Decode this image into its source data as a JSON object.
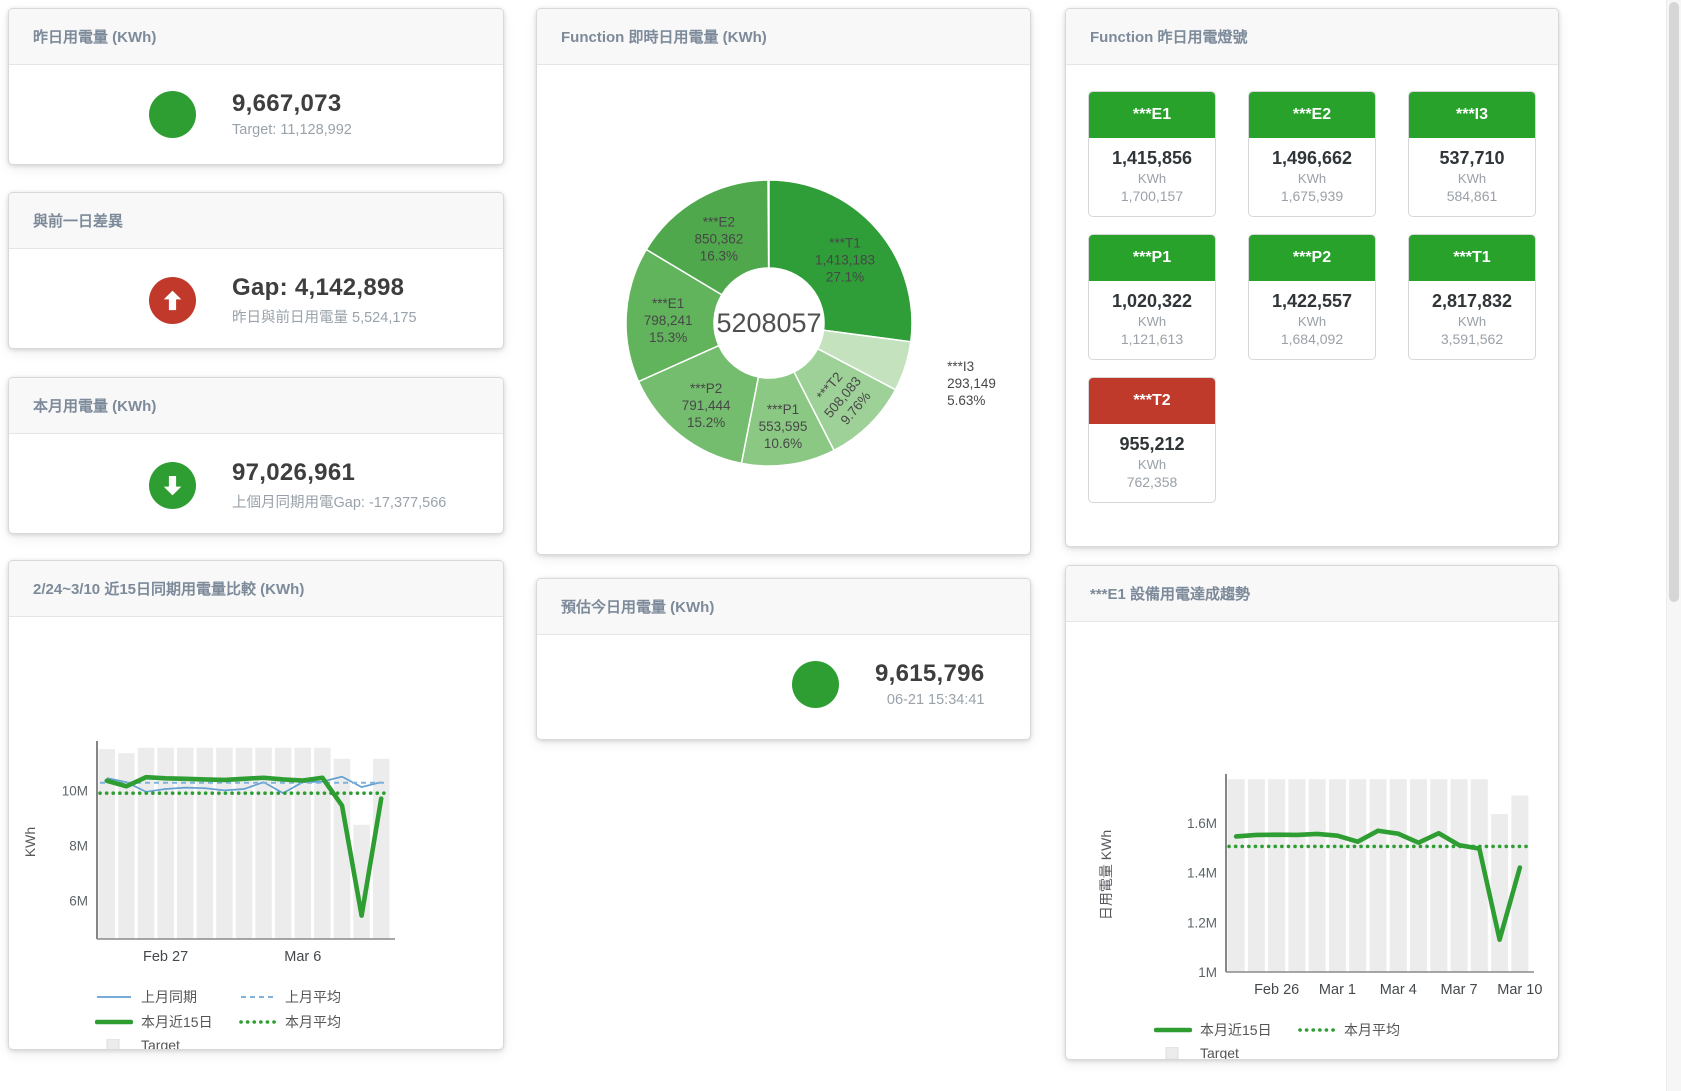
{
  "cards": {
    "yesterday": {
      "title": "昨日用電量 (KWh)",
      "value": "9,667,073",
      "subtitle": "Target: 11,128,992",
      "icon": "circle",
      "icon_color": "#2e9e33"
    },
    "gap": {
      "title": "與前一日差異",
      "value": "Gap: 4,142,898",
      "subtitle": "昨日與前日用電量 5,524,175",
      "icon": "arrow-up",
      "icon_color": "#c0392b"
    },
    "month": {
      "title": "本月用電量 (KWh)",
      "value": "97,026,961",
      "subtitle": "上個月同期用電Gap: -17,377,566",
      "icon": "arrow-down",
      "icon_color": "#2e9e33"
    },
    "estimate": {
      "title": "預估今日用電量 (KWh)",
      "value": "9,615,796",
      "subtitle": "06-21 15:34:41",
      "icon": "circle",
      "icon_color": "#2e9e33"
    }
  },
  "donut_card": {
    "title": "Function 即時日用電量 (KWh)"
  },
  "light_board": {
    "title": "Function 昨日用電燈號",
    "status_colors": {
      "green": "#28a22b",
      "red": "#c03a2b"
    },
    "tiles": [
      {
        "name": "***E1",
        "value": "1,415,856",
        "unit": "KWh",
        "target": "1,700,157",
        "status": "green"
      },
      {
        "name": "***E2",
        "value": "1,496,662",
        "unit": "KWh",
        "target": "1,675,939",
        "status": "green"
      },
      {
        "name": "***I3",
        "value": "537,710",
        "unit": "KWh",
        "target": "584,861",
        "status": "green"
      },
      {
        "name": "***P1",
        "value": "1,020,322",
        "unit": "KWh",
        "target": "1,121,613",
        "status": "green"
      },
      {
        "name": "***P2",
        "value": "1,422,557",
        "unit": "KWh",
        "target": "1,684,092",
        "status": "green"
      },
      {
        "name": "***T1",
        "value": "2,817,832",
        "unit": "KWh",
        "target": "3,591,562",
        "status": "green"
      },
      {
        "name": "***T2",
        "value": "955,212",
        "unit": "KWh",
        "target": "762,358",
        "status": "red"
      }
    ]
  },
  "compare_card": {
    "title": "2/24~3/10 近15日同期用電量比較 (KWh)"
  },
  "trend_card": {
    "title": "***E1 設備用電達成趨勢"
  },
  "chart_data": [
    {
      "id": "realtime_donut",
      "type": "pie",
      "title": "Function 即時日用電量 (KWh)",
      "center_total": "5208057",
      "slices": [
        {
          "name": "***T1",
          "value": 1413183,
          "label_value": "1,413,183",
          "percent": "27.1%",
          "pct": 27.1,
          "color": "#2f9e38"
        },
        {
          "name": "***I3",
          "value": 293149,
          "label_value": "293,149",
          "percent": "5.63%",
          "pct": 5.63,
          "color": "#c3e2bd",
          "label_outside": true
        },
        {
          "name": "***T2",
          "value": 508083,
          "label_value": "508,083",
          "percent": "9.76%",
          "pct": 9.76,
          "color": "#9ed197",
          "rotate": -50
        },
        {
          "name": "***P1",
          "value": 553595,
          "label_value": "553,595",
          "percent": "10.6%",
          "pct": 10.6,
          "color": "#8bc883"
        },
        {
          "name": "***P2",
          "value": 791444,
          "label_value": "791,444",
          "percent": "15.2%",
          "pct": 15.2,
          "color": "#74bd6e"
        },
        {
          "name": "***E1",
          "value": 798241,
          "label_value": "798,241",
          "percent": "15.3%",
          "pct": 15.3,
          "color": "#61b35c"
        },
        {
          "name": "***E2",
          "value": 850362,
          "label_value": "850,362",
          "percent": "16.3%",
          "pct": 16.3,
          "color": "#4fa84b"
        }
      ]
    },
    {
      "id": "compare_15day",
      "type": "line",
      "title": "2/24~3/10 近15日同期用電量比較 (KWh)",
      "categories": [
        "2/24",
        "2/25",
        "2/26",
        "2/27",
        "2/28",
        "3/1",
        "3/2",
        "3/3",
        "3/4",
        "3/5",
        "3/6",
        "3/7",
        "3/8",
        "3/9",
        "3/10"
      ],
      "x_ticks": [
        {
          "index": 3,
          "label": "Feb 27"
        },
        {
          "index": 10,
          "label": "Mar 6"
        }
      ],
      "ylabel": "KWh",
      "unit": "millions of KWh",
      "ylim": [
        4.6,
        11.65
      ],
      "yticks": [
        {
          "value": 6,
          "label": "6M"
        },
        {
          "value": 8,
          "label": "8M"
        },
        {
          "value": 10,
          "label": "10M"
        }
      ],
      "series": [
        {
          "name": "Target",
          "type": "bar",
          "color": "#ececec",
          "values": [
            11.5,
            11.35,
            11.55,
            11.55,
            11.55,
            11.55,
            11.55,
            11.55,
            11.55,
            11.55,
            11.55,
            11.55,
            11.15,
            8.75,
            11.15
          ]
        },
        {
          "name": "上月同期",
          "type": "line",
          "color": "#64a0d2",
          "values": [
            10.45,
            10.3,
            9.95,
            10.05,
            10.1,
            10.08,
            10.0,
            10.05,
            10.3,
            9.9,
            10.3,
            10.32,
            10.5,
            10.12,
            10.3
          ]
        },
        {
          "name": "上月平均",
          "type": "dash",
          "color": "#7fb2dd",
          "value": 10.28
        },
        {
          "name": "本月平均",
          "type": "dots",
          "color": "#2e9e33",
          "value": 9.9
        },
        {
          "name": "本月近15日",
          "type": "thick",
          "color": "#2e9e33",
          "values": [
            10.35,
            10.15,
            10.48,
            10.44,
            10.42,
            10.4,
            10.38,
            10.42,
            10.46,
            10.4,
            10.36,
            10.46,
            9.45,
            5.45,
            9.7
          ]
        }
      ],
      "legend": [
        {
          "label": "上月同期",
          "swatch": "line",
          "color": "#64a0d2"
        },
        {
          "label": "上月平均",
          "swatch": "dash",
          "color": "#7fb2dd"
        },
        {
          "label": "本月近15日",
          "swatch": "thick",
          "color": "#2e9e33"
        },
        {
          "label": "本月平均",
          "swatch": "dots",
          "color": "#2e9e33"
        },
        {
          "label": "Target",
          "swatch": "box",
          "color": "#ececec"
        }
      ]
    },
    {
      "id": "e1_trend",
      "type": "line",
      "title": "***E1 設備用電達成趨勢",
      "categories": [
        "2/24",
        "2/25",
        "2/26",
        "2/27",
        "2/28",
        "3/1",
        "3/2",
        "3/3",
        "3/4",
        "3/5",
        "3/6",
        "3/7",
        "3/8",
        "3/9",
        "3/10"
      ],
      "x_ticks": [
        {
          "index": 2,
          "label": "Feb 26"
        },
        {
          "index": 5,
          "label": "Mar 1"
        },
        {
          "index": 8,
          "label": "Mar 4"
        },
        {
          "index": 11,
          "label": "Mar 7"
        },
        {
          "index": 14,
          "label": "Mar 10"
        }
      ],
      "ylabel": "日用電量 KWh",
      "unit": "millions of KWh",
      "ylim": [
        1.0,
        1.78
      ],
      "yticks": [
        {
          "value": 1,
          "label": "1M"
        },
        {
          "value": 1.2,
          "label": "1.2M"
        },
        {
          "value": 1.4,
          "label": "1.4M"
        },
        {
          "value": 1.6,
          "label": "1.6M"
        }
      ],
      "series": [
        {
          "name": "Target",
          "type": "bar",
          "color": "#ececec",
          "values": [
            1.775,
            1.775,
            1.775,
            1.775,
            1.775,
            1.775,
            1.775,
            1.775,
            1.775,
            1.775,
            1.775,
            1.775,
            1.775,
            1.635,
            1.71
          ]
        },
        {
          "name": "本月平均",
          "type": "dots",
          "color": "#2e9e33",
          "value": 1.505
        },
        {
          "name": "本月近15日",
          "type": "thick",
          "color": "#2e9e33",
          "values": [
            1.545,
            1.551,
            1.552,
            1.551,
            1.555,
            1.548,
            1.524,
            1.568,
            1.556,
            1.52,
            1.558,
            1.51,
            1.496,
            1.13,
            1.42
          ]
        }
      ],
      "legend": [
        {
          "label": "本月近15日",
          "swatch": "thick",
          "color": "#2e9e33"
        },
        {
          "label": "本月平均",
          "swatch": "dots",
          "color": "#2e9e33"
        },
        {
          "label": "Target",
          "swatch": "box",
          "color": "#ececec"
        }
      ]
    }
  ]
}
